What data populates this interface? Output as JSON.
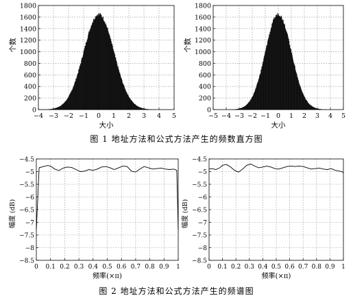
{
  "figure1": {
    "caption": "图 1 地址方法和公式方法产生的频数直方图",
    "chart_data": [
      {
        "type": "bar",
        "title": "",
        "xlabel": "大小",
        "ylabel": "个数",
        "xlim": [
          -4,
          5
        ],
        "ylim": [
          0,
          1800
        ],
        "xticks": [
          -4,
          -3,
          -2,
          -1,
          0,
          1,
          2,
          3,
          4,
          5
        ],
        "yticks": [
          0,
          200,
          400,
          600,
          800,
          1000,
          1200,
          1400,
          1600,
          1800
        ],
        "grid": true,
        "distribution": {
          "shape": "gaussian",
          "mean": 0,
          "std": 1,
          "peak": 1650
        }
      },
      {
        "type": "bar",
        "title": "",
        "xlabel": "大小",
        "ylabel": "个数",
        "xlim": [
          -5,
          5
        ],
        "ylim": [
          0,
          1800
        ],
        "xticks": [
          -5,
          -4,
          -3,
          -2,
          -1,
          0,
          1,
          2,
          3,
          4,
          5
        ],
        "yticks": [
          0,
          200,
          400,
          600,
          800,
          1000,
          1200,
          1400,
          1600,
          1800
        ],
        "grid": true,
        "distribution": {
          "shape": "gaussian",
          "mean": 0,
          "std": 1,
          "peak": 1650
        }
      }
    ]
  },
  "figure2": {
    "caption": "图 2 地址方法和公式方法产生的频谱图",
    "chart_data": [
      {
        "type": "line",
        "title": "",
        "xlabel": "频率(×π)",
        "ylabel": "幅度 (dB)",
        "xlim": [
          0,
          1
        ],
        "ylim": [
          -8.5,
          -4.5
        ],
        "xticks": [
          0,
          0.1,
          0.2,
          0.3,
          0.4,
          0.5,
          0.6,
          0.7,
          0.8,
          0.9,
          1
        ],
        "xtick_labels": [
          "0",
          "0.1",
          "0.2",
          "0.3",
          "0.4",
          "0.5",
          "0.6",
          "0.7",
          "0.8",
          "0.9",
          "1"
        ],
        "yticks": [
          -4.5,
          -5,
          -5.5,
          -6,
          -6.5,
          -7,
          -7.5,
          -8,
          -8.5
        ],
        "ytick_labels": [
          "-4.5",
          "-5",
          "-5.5",
          "-6",
          "-6.5",
          "-7",
          "-7.5",
          "-8",
          "-8.5"
        ],
        "grid": true,
        "x": [
          0,
          0.02,
          0.05,
          0.08,
          0.1,
          0.13,
          0.16,
          0.19,
          0.22,
          0.25,
          0.28,
          0.31,
          0.34,
          0.37,
          0.4,
          0.43,
          0.46,
          0.49,
          0.52,
          0.55,
          0.58,
          0.61,
          0.64,
          0.67,
          0.7,
          0.73,
          0.76,
          0.79,
          0.82,
          0.85,
          0.88,
          0.91,
          0.94,
          0.97,
          0.99,
          1
        ],
        "y": [
          -7.3,
          -4.85,
          -4.8,
          -4.76,
          -4.78,
          -4.9,
          -4.96,
          -4.86,
          -4.82,
          -4.84,
          -4.92,
          -5.0,
          -4.98,
          -4.92,
          -4.95,
          -4.9,
          -4.82,
          -4.8,
          -4.85,
          -4.92,
          -4.85,
          -4.78,
          -4.8,
          -4.98,
          -5.02,
          -4.9,
          -4.8,
          -4.85,
          -4.9,
          -4.88,
          -4.86,
          -4.9,
          -4.92,
          -4.9,
          -4.95,
          -7.3
        ]
      },
      {
        "type": "line",
        "title": "",
        "xlabel": "频率(×π)",
        "ylabel": "幅度 (dB)",
        "xlim": [
          0,
          1
        ],
        "ylim": [
          -8.5,
          -4.5
        ],
        "xticks": [
          0,
          0.1,
          0.2,
          0.3,
          0.4,
          0.5,
          0.6,
          0.7,
          0.8,
          0.9,
          1
        ],
        "xtick_labels": [
          "0",
          "0.1",
          "0.2",
          "0.3",
          "0.4",
          "0.5",
          "0.6",
          "0.7",
          "0.8",
          "0.9",
          "1"
        ],
        "yticks": [
          -4.5,
          -5,
          -5.5,
          -6,
          -6.5,
          -7,
          -7.5,
          -8,
          -8.5
        ],
        "ytick_labels": [
          "-4.5",
          "-5",
          "-5.5",
          "-6",
          "-6.5",
          "-7",
          "-7.5",
          "-8",
          "-8.5"
        ],
        "grid": true,
        "x": [
          0,
          0.02,
          0.05,
          0.08,
          0.1,
          0.13,
          0.16,
          0.19,
          0.22,
          0.25,
          0.28,
          0.31,
          0.34,
          0.37,
          0.4,
          0.43,
          0.46,
          0.49,
          0.52,
          0.55,
          0.58,
          0.61,
          0.64,
          0.67,
          0.7,
          0.73,
          0.76,
          0.79,
          0.82,
          0.85,
          0.88,
          0.91,
          0.94,
          0.97,
          0.99,
          1
        ],
        "y": [
          -4.9,
          -4.88,
          -4.92,
          -4.85,
          -4.75,
          -4.72,
          -4.82,
          -4.95,
          -5.02,
          -4.9,
          -4.75,
          -4.7,
          -4.78,
          -4.85,
          -4.82,
          -4.78,
          -4.82,
          -4.88,
          -4.9,
          -4.85,
          -4.8,
          -4.78,
          -4.8,
          -4.78,
          -4.8,
          -4.85,
          -4.9,
          -4.88,
          -4.86,
          -4.9,
          -4.92,
          -4.88,
          -4.95,
          -4.98,
          -5.0,
          -5.05
        ]
      }
    ]
  }
}
